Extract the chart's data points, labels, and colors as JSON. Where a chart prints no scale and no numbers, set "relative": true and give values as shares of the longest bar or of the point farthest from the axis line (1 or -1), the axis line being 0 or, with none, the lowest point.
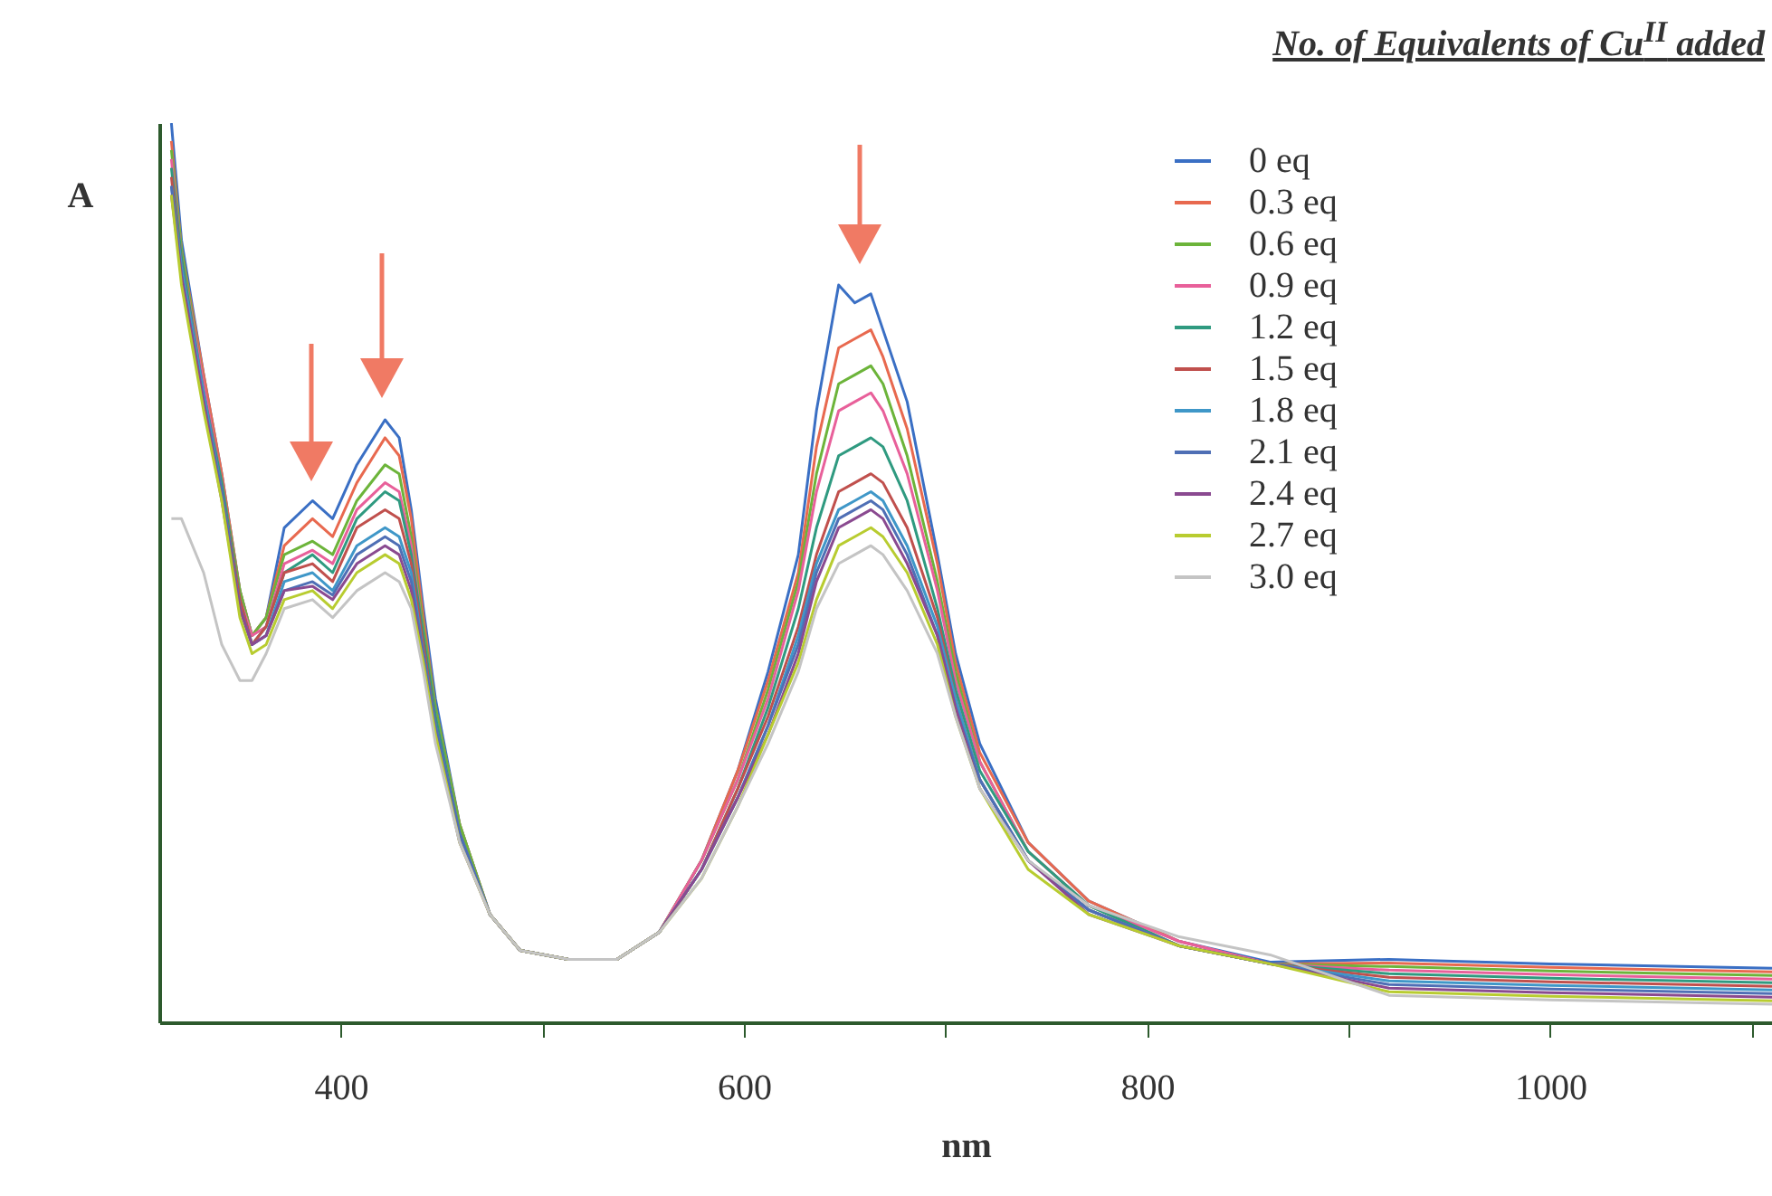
{
  "chart_data": {
    "type": "line",
    "xlabel": "nm",
    "ylabel": "A",
    "legend_title": "No. of Equivalents of Cu$^{II}$ added",
    "legend": "top right",
    "relative": true,
    "xlim": [
      310,
      1110
    ],
    "xticks": [
      400,
      {
        "value": 500,
        "label": null
      },
      600,
      {
        "value": 700,
        "label": null
      },
      800,
      {
        "value": 900,
        "label": null
      },
      1000,
      {
        "value": 1100,
        "label": null
      }
    ],
    "x": [
      316,
      321,
      332,
      341,
      350,
      356,
      363,
      372,
      386,
      396,
      408,
      422,
      429,
      435,
      441,
      447,
      459,
      474,
      489,
      513,
      537,
      558,
      579,
      597,
      612,
      627,
      636,
      647,
      655,
      663,
      669,
      681,
      696,
      705,
      717,
      741,
      771,
      816,
      861,
      920,
      1000,
      1110
    ],
    "series": [
      {
        "name": "0 eq",
        "color": "#3a6fc4",
        "values": [
          1,
          0.87,
          0.72,
          0.61,
          0.48,
          0.43,
          0.45,
          0.55,
          0.58,
          0.56,
          0.62,
          0.67,
          0.65,
          0.57,
          0.46,
          0.36,
          0.22,
          0.12,
          0.08,
          0.07,
          0.07,
          0.1,
          0.18,
          0.28,
          0.39,
          0.52,
          0.68,
          0.82,
          0.8,
          0.81,
          0.77,
          0.69,
          0.52,
          0.41,
          0.31,
          0.2,
          0.135,
          0.09,
          0.067,
          0.07,
          0.065,
          0.06
        ]
      },
      {
        "name": "0.3 eq",
        "color": "#e8694f",
        "values": [
          0.98,
          0.86,
          0.72,
          0.61,
          0.48,
          0.43,
          0.45,
          0.53,
          0.56,
          0.54,
          0.6,
          0.65,
          0.63,
          0.56,
          0.45,
          0.35,
          0.22,
          0.12,
          0.08,
          0.07,
          0.07,
          0.1,
          0.18,
          0.28,
          0.38,
          0.5,
          0.64,
          0.75,
          0.76,
          0.77,
          0.74,
          0.66,
          0.51,
          0.4,
          0.3,
          0.2,
          0.135,
          0.09,
          0.065,
          0.066,
          0.061,
          0.056
        ]
      },
      {
        "name": "0.6 eq",
        "color": "#6cb43a",
        "values": [
          0.97,
          0.86,
          0.71,
          0.6,
          0.48,
          0.43,
          0.45,
          0.52,
          0.535,
          0.52,
          0.58,
          0.62,
          0.61,
          0.54,
          0.44,
          0.35,
          0.22,
          0.12,
          0.08,
          0.07,
          0.07,
          0.1,
          0.18,
          0.27,
          0.37,
          0.49,
          0.61,
          0.71,
          0.72,
          0.73,
          0.71,
          0.63,
          0.49,
          0.39,
          0.29,
          0.19,
          0.13,
          0.085,
          0.065,
          0.062,
          0.057,
          0.052
        ]
      },
      {
        "name": "0.9 eq",
        "color": "#e8609a",
        "values": [
          0.96,
          0.85,
          0.71,
          0.6,
          0.47,
          0.43,
          0.44,
          0.51,
          0.525,
          0.51,
          0.57,
          0.6,
          0.59,
          0.53,
          0.43,
          0.34,
          0.21,
          0.12,
          0.08,
          0.07,
          0.07,
          0.1,
          0.18,
          0.27,
          0.36,
          0.48,
          0.59,
          0.68,
          0.69,
          0.7,
          0.68,
          0.61,
          0.48,
          0.38,
          0.29,
          0.19,
          0.13,
          0.09,
          0.065,
          0.058,
          0.053,
          0.048
        ]
      },
      {
        "name": "1.2 eq",
        "color": "#2f9a80",
        "values": [
          0.95,
          0.85,
          0.7,
          0.6,
          0.47,
          0.42,
          0.44,
          0.5,
          0.52,
          0.5,
          0.56,
          0.59,
          0.58,
          0.52,
          0.43,
          0.34,
          0.21,
          0.12,
          0.08,
          0.07,
          0.07,
          0.1,
          0.17,
          0.26,
          0.35,
          0.46,
          0.55,
          0.63,
          0.64,
          0.65,
          0.64,
          0.58,
          0.46,
          0.37,
          0.28,
          0.19,
          0.13,
          0.085,
          0.065,
          0.054,
          0.049,
          0.044
        ]
      },
      {
        "name": "1.5 eq",
        "color": "#c0504d",
        "values": [
          0.94,
          0.84,
          0.7,
          0.59,
          0.47,
          0.42,
          0.44,
          0.5,
          0.51,
          0.49,
          0.55,
          0.57,
          0.56,
          0.51,
          0.42,
          0.33,
          0.21,
          0.12,
          0.08,
          0.07,
          0.07,
          0.1,
          0.17,
          0.26,
          0.34,
          0.44,
          0.52,
          0.59,
          0.6,
          0.61,
          0.6,
          0.55,
          0.45,
          0.36,
          0.27,
          0.18,
          0.125,
          0.085,
          0.065,
          0.05,
          0.045,
          0.04
        ]
      },
      {
        "name": "1.8 eq",
        "color": "#3f97c8",
        "values": [
          0.93,
          0.84,
          0.7,
          0.59,
          0.46,
          0.42,
          0.43,
          0.49,
          0.5,
          0.48,
          0.53,
          0.55,
          0.54,
          0.5,
          0.41,
          0.33,
          0.21,
          0.12,
          0.08,
          0.07,
          0.07,
          0.1,
          0.17,
          0.25,
          0.33,
          0.43,
          0.51,
          0.57,
          0.58,
          0.59,
          0.58,
          0.53,
          0.44,
          0.36,
          0.27,
          0.18,
          0.125,
          0.085,
          0.065,
          0.046,
          0.041,
          0.036
        ]
      },
      {
        "name": "2.1 eq",
        "color": "#4f6fb5",
        "values": [
          0.93,
          0.83,
          0.69,
          0.59,
          0.46,
          0.42,
          0.43,
          0.48,
          0.49,
          0.475,
          0.52,
          0.54,
          0.53,
          0.49,
          0.41,
          0.33,
          0.21,
          0.12,
          0.08,
          0.07,
          0.07,
          0.1,
          0.17,
          0.25,
          0.33,
          0.42,
          0.5,
          0.56,
          0.57,
          0.58,
          0.57,
          0.52,
          0.43,
          0.35,
          0.27,
          0.18,
          0.125,
          0.085,
          0.065,
          0.042,
          0.037,
          0.032
        ]
      },
      {
        "name": "2.4 eq",
        "color": "#8a4a90",
        "values": [
          0.92,
          0.83,
          0.69,
          0.58,
          0.46,
          0.42,
          0.43,
          0.48,
          0.485,
          0.47,
          0.51,
          0.53,
          0.52,
          0.48,
          0.4,
          0.32,
          0.2,
          0.12,
          0.08,
          0.07,
          0.07,
          0.1,
          0.17,
          0.25,
          0.32,
          0.41,
          0.49,
          0.55,
          0.56,
          0.57,
          0.56,
          0.51,
          0.43,
          0.35,
          0.26,
          0.18,
          0.12,
          0.085,
          0.065,
          0.038,
          0.033,
          0.028
        ]
      },
      {
        "name": "2.7 eq",
        "color": "#b8cc30",
        "values": [
          0.92,
          0.82,
          0.68,
          0.58,
          0.45,
          0.41,
          0.42,
          0.47,
          0.48,
          0.46,
          0.5,
          0.52,
          0.51,
          0.47,
          0.4,
          0.32,
          0.2,
          0.12,
          0.08,
          0.07,
          0.07,
          0.1,
          0.16,
          0.24,
          0.32,
          0.4,
          0.47,
          0.53,
          0.54,
          0.55,
          0.54,
          0.5,
          0.42,
          0.34,
          0.26,
          0.17,
          0.12,
          0.085,
          0.065,
          0.034,
          0.029,
          0.024
        ]
      },
      {
        "name": "3.0 eq",
        "color": "#c4c4c4",
        "values": [
          0.56,
          0.56,
          0.5,
          0.42,
          0.38,
          0.38,
          0.41,
          0.46,
          0.47,
          0.45,
          0.48,
          0.5,
          0.49,
          0.46,
          0.39,
          0.31,
          0.2,
          0.12,
          0.08,
          0.07,
          0.07,
          0.1,
          0.16,
          0.24,
          0.31,
          0.39,
          0.46,
          0.51,
          0.52,
          0.53,
          0.52,
          0.48,
          0.41,
          0.34,
          0.26,
          0.18,
          0.13,
          0.095,
          0.075,
          0.03,
          0.025,
          0.02
        ]
      }
    ]
  }
}
